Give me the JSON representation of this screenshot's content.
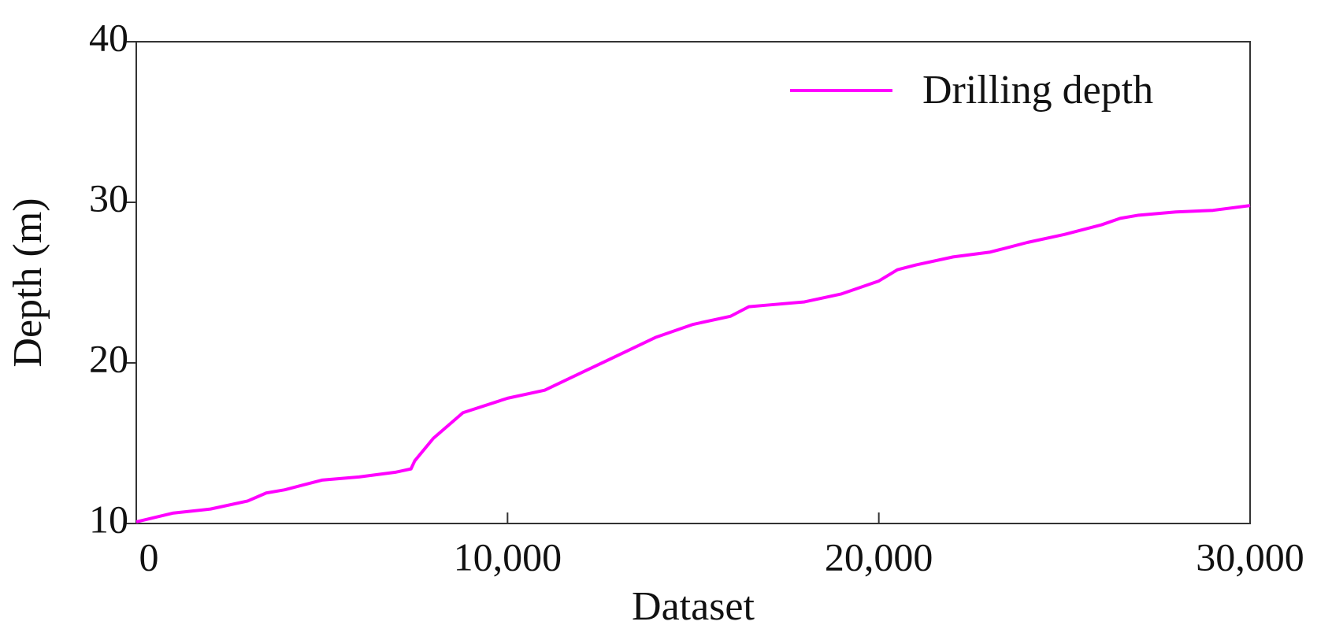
{
  "chart_data": {
    "type": "line",
    "xlabel": "Dataset",
    "ylabel": "Depth (m)",
    "x": [
      0,
      1000,
      2000,
      3000,
      3500,
      4000,
      5000,
      6000,
      7000,
      7400,
      7500,
      8000,
      8800,
      10000,
      11000,
      12000,
      13000,
      14000,
      15000,
      16000,
      16500,
      17000,
      18000,
      19000,
      20000,
      20500,
      21000,
      22000,
      23000,
      24000,
      25000,
      26000,
      26500,
      27000,
      28000,
      29000,
      30000
    ],
    "series": [
      {
        "name": "Drilling depth",
        "color": "#ff00ff",
        "values": [
          10.1,
          10.65,
          10.9,
          11.4,
          11.9,
          12.1,
          12.7,
          12.9,
          13.2,
          13.4,
          13.9,
          15.3,
          16.9,
          17.8,
          18.3,
          19.4,
          20.5,
          21.6,
          22.4,
          22.9,
          23.5,
          23.6,
          23.8,
          24.3,
          25.1,
          25.8,
          26.1,
          26.6,
          26.9,
          27.5,
          28.0,
          28.6,
          29.0,
          29.2,
          29.4,
          29.5,
          29.8
        ]
      }
    ],
    "xlim": [
      0,
      30000
    ],
    "xticks": [
      0,
      {
        "value": 10000,
        "label": "10,000"
      },
      {
        "value": 20000,
        "label": "20,000"
      },
      {
        "value": 30000,
        "label": "30,000"
      }
    ],
    "ylim": [
      10,
      40
    ],
    "yticks": [
      10,
      20,
      30,
      40
    ],
    "grid": false,
    "legend": "upper right"
  }
}
